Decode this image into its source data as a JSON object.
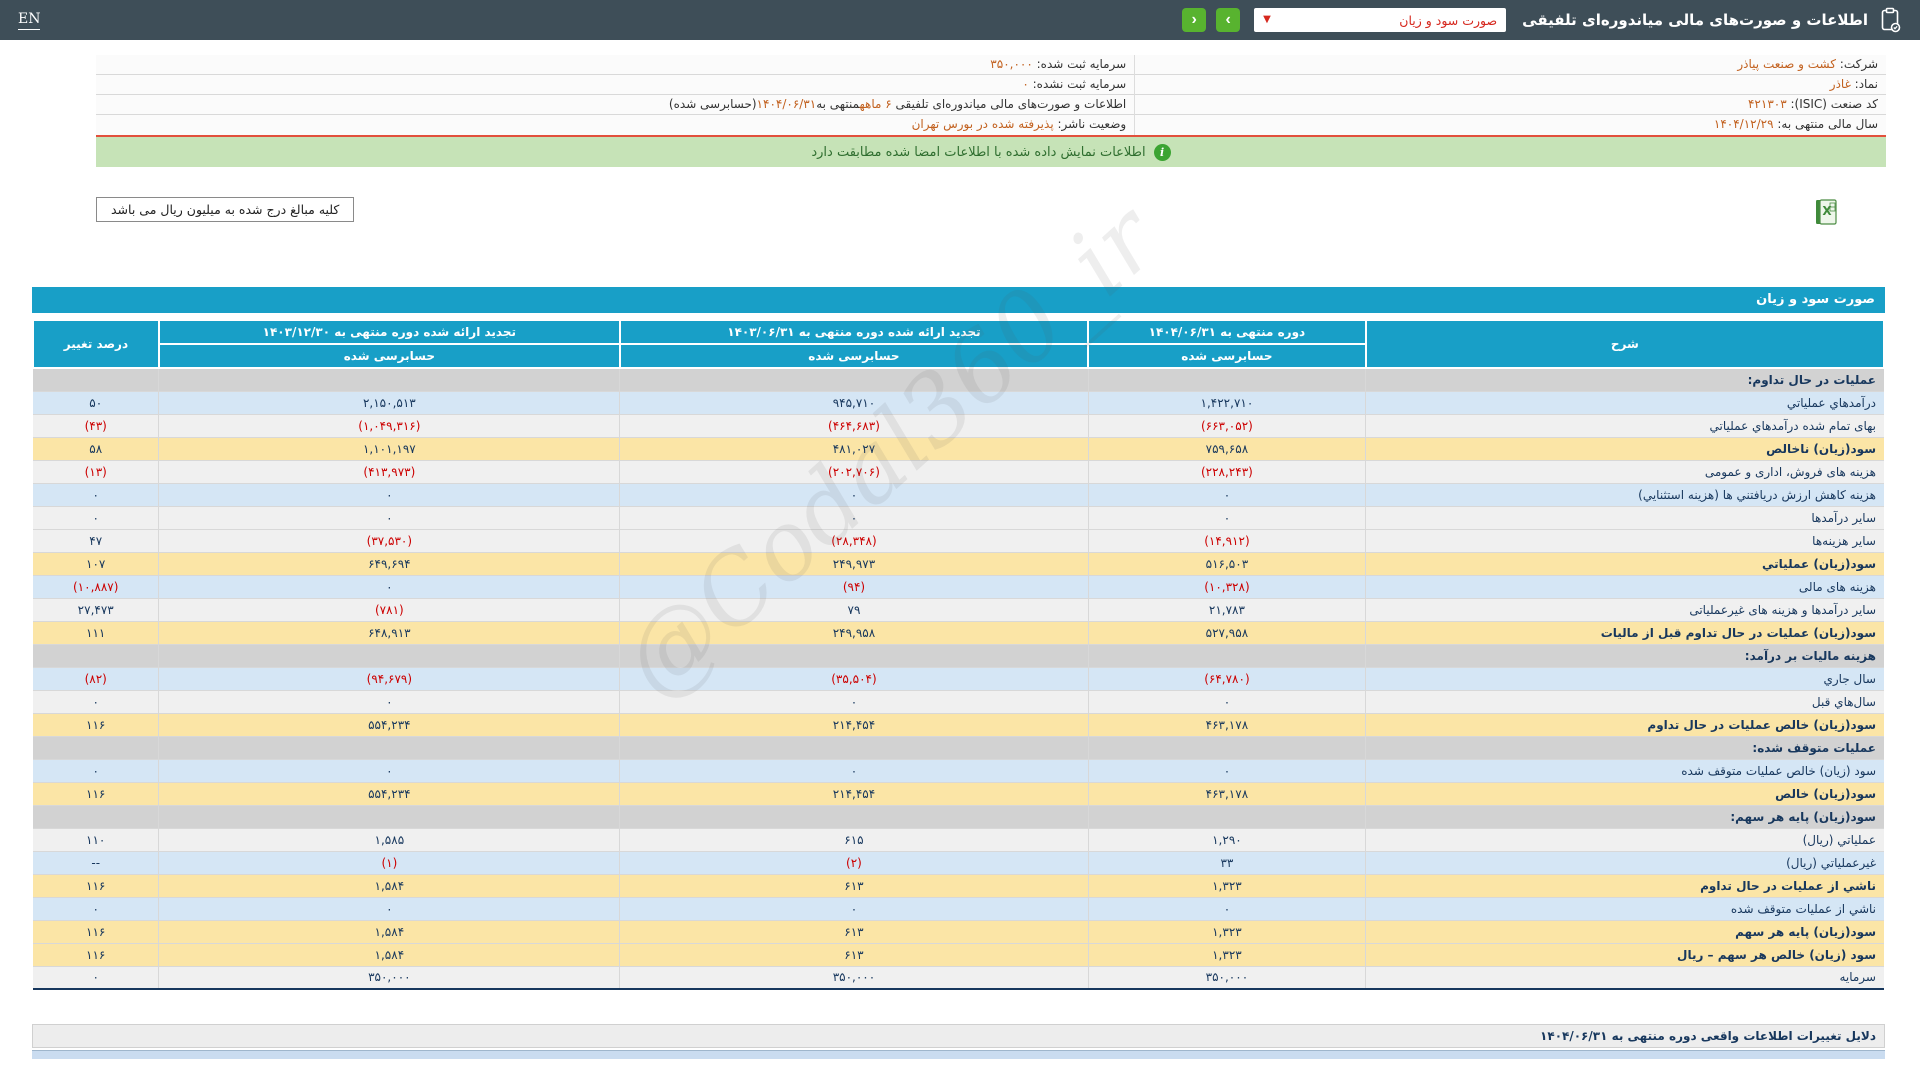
{
  "topbar": {
    "title": "اطلاعات و صورت‌های مالی میاندوره‌ای تلفیقی",
    "dropdown_value": "صورت سود و زیان",
    "next_label": "›",
    "prev_label": "‹",
    "lang": "EN"
  },
  "info": {
    "right": [
      [
        {
          "t": "شرکت:  "
        },
        {
          "t": "کشت و صنعت پیاذر",
          "o": true
        }
      ],
      [
        {
          "t": "نماد:  "
        },
        {
          "t": "غاذر",
          "o": true
        }
      ],
      [
        {
          "t": "کد صنعت (ISIC):  "
        },
        {
          "t": "۴۲۱۳۰۳",
          "o": true
        }
      ],
      [
        {
          "t": "سال مالی منتهی به:  "
        },
        {
          "t": "۱۴۰۴/۱۲/۲۹",
          "o": true
        }
      ]
    ],
    "left": [
      [
        {
          "t": "سرمایه ثبت شده:  "
        },
        {
          "t": "۳۵۰,۰۰۰",
          "o": true
        }
      ],
      [
        {
          "t": "سرمایه ثبت نشده:  "
        },
        {
          "t": "۰",
          "o": true
        }
      ],
      [
        {
          "t": "اطلاعات و صورت‌های مالی میاندوره‌ای تلفیقی "
        },
        {
          "t": "۶ ماهه",
          "o": true
        },
        {
          "t": "منتهی به"
        },
        {
          "t": "۱۴۰۴/۰۶/۳۱",
          "o": true
        },
        {
          "t": "(حسابرسی شده)"
        }
      ],
      [
        {
          "t": "وضعیت ناشر:  "
        },
        {
          "t": "پذیرفته شده در بورس تهران",
          "o": true
        }
      ]
    ]
  },
  "banner": {
    "text": "اطلاعات نمایش داده شده با اطلاعات امضا شده مطابقت دارد"
  },
  "amounts_note": "کلیه مبالغ درج شده به میلیون ریال می باشد",
  "watermark": "@Codal360_ir",
  "statement": {
    "title": "صورت سود و زیان",
    "col_desc": "شرح",
    "col_change": "درصد تغییر",
    "columns": [
      {
        "title": "دوره منتهی به ۱۴۰۴/۰۶/۳۱",
        "sub": "حسابرسی شده"
      },
      {
        "title": "تجدید ارائه شده دوره منتهی به ۱۴۰۳/۰۶/۳۱",
        "sub": "حسابرسی شده"
      },
      {
        "title": "تجدید ارائه شده دوره منتهی به ۱۴۰۳/۱۲/۳۰",
        "sub": "حسابرسی شده"
      }
    ],
    "rows": [
      {
        "type": "section",
        "desc": "عملیات در حال تداوم:"
      },
      {
        "type": "data",
        "variant": "blue",
        "desc": "درآمدهاي عملیاتي",
        "v": [
          "۱,۴۲۲,۷۱۰",
          "۹۴۵,۷۱۰",
          "۲,۱۵۰,۵۱۳",
          "۵۰"
        ]
      },
      {
        "type": "data",
        "variant": "white",
        "desc": "بهای تمام شده درآمدهاي عملیاتي",
        "v": [
          "(۶۶۳,۰۵۲)",
          "(۴۶۴,۶۸۳)",
          "(۱,۰۴۹,۳۱۶)",
          "(۴۳)"
        ]
      },
      {
        "type": "data",
        "variant": "yellow",
        "desc": "سود(زیان) ناخالص",
        "v": [
          "۷۵۹,۶۵۸",
          "۴۸۱,۰۲۷",
          "۱,۱۰۱,۱۹۷",
          "۵۸"
        ]
      },
      {
        "type": "data",
        "variant": "white",
        "desc": "هزینه های فروش، اداری و عمومی",
        "v": [
          "(۲۲۸,۲۴۳)",
          "(۲۰۲,۷۰۶)",
          "(۴۱۳,۹۷۳)",
          "(۱۳)"
        ]
      },
      {
        "type": "data",
        "variant": "blue",
        "desc": "هزینه کاهش ارزش دریافتني ها (هزینه استثنایي)",
        "v": [
          "۰",
          "۰",
          "۰",
          "۰"
        ]
      },
      {
        "type": "data",
        "variant": "white",
        "desc": "سایر درآمدها",
        "v": [
          "۰",
          "۰",
          "۰",
          "۰"
        ]
      },
      {
        "type": "data",
        "variant": "white",
        "desc": "سایر هزینه‌ها",
        "v": [
          "(۱۴,۹۱۲)",
          "(۲۸,۳۴۸)",
          "(۳۷,۵۳۰)",
          "۴۷"
        ]
      },
      {
        "type": "data",
        "variant": "yellow",
        "desc": "سود(زیان) عملیاتي",
        "v": [
          "۵۱۶,۵۰۳",
          "۲۴۹,۹۷۳",
          "۶۴۹,۶۹۴",
          "۱۰۷"
        ]
      },
      {
        "type": "data",
        "variant": "blue",
        "desc": "هزینه های مالی",
        "v": [
          "(۱۰,۳۲۸)",
          "(۹۴)",
          "۰",
          "(۱۰,۸۸۷)"
        ]
      },
      {
        "type": "data",
        "variant": "white",
        "desc": "سایر درآمدها و هزینه های غیرعملیاتی",
        "v": [
          "۲۱,۷۸۳",
          "۷۹",
          "(۷۸۱)",
          "۲۷,۴۷۳"
        ]
      },
      {
        "type": "data",
        "variant": "yellow",
        "desc": "سود(زیان) عملیات در حال تداوم قبل از مالیات",
        "v": [
          "۵۲۷,۹۵۸",
          "۲۴۹,۹۵۸",
          "۶۴۸,۹۱۳",
          "۱۱۱"
        ]
      },
      {
        "type": "section",
        "desc": "هزینه مالیات بر درآمد:"
      },
      {
        "type": "data",
        "variant": "blue",
        "desc": "سال جاري",
        "v": [
          "(۶۴,۷۸۰)",
          "(۳۵,۵۰۴)",
          "(۹۴,۶۷۹)",
          "(۸۲)"
        ]
      },
      {
        "type": "data",
        "variant": "white",
        "desc": "سال‌هاي قبل",
        "v": [
          "۰",
          "۰",
          "۰",
          "۰"
        ]
      },
      {
        "type": "data",
        "variant": "yellow",
        "desc": "سود(زیان) خالص عملیات در حال تداوم",
        "v": [
          "۴۶۳,۱۷۸",
          "۲۱۴,۴۵۴",
          "۵۵۴,۲۳۴",
          "۱۱۶"
        ]
      },
      {
        "type": "section",
        "desc": "عملیات متوقف شده:"
      },
      {
        "type": "data",
        "variant": "blue",
        "desc": "سود (زیان) خالص عملیات متوقف شده",
        "v": [
          "۰",
          "۰",
          "۰",
          "۰"
        ]
      },
      {
        "type": "data",
        "variant": "yellow",
        "desc": "سود(زیان) خالص",
        "v": [
          "۴۶۳,۱۷۸",
          "۲۱۴,۴۵۴",
          "۵۵۴,۲۳۴",
          "۱۱۶"
        ]
      },
      {
        "type": "section",
        "desc": "سود(زیان) پایه هر سهم:"
      },
      {
        "type": "data",
        "variant": "white",
        "desc": "عملیاتي (ریال)",
        "v": [
          "۱,۲۹۰",
          "۶۱۵",
          "۱,۵۸۵",
          "۱۱۰"
        ]
      },
      {
        "type": "data",
        "variant": "blue",
        "desc": "غیرعملیاتي (ریال)",
        "v": [
          "۳۳",
          "(۲)",
          "(۱)",
          "--"
        ]
      },
      {
        "type": "data",
        "variant": "yellow",
        "desc": "ناشي از عملیات در حال تداوم",
        "v": [
          "۱,۳۲۳",
          "۶۱۳",
          "۱,۵۸۴",
          "۱۱۶"
        ]
      },
      {
        "type": "data",
        "variant": "blue",
        "desc": "ناشي از عملیات متوقف شده",
        "v": [
          "۰",
          "۰",
          "۰",
          "۰"
        ]
      },
      {
        "type": "data",
        "variant": "yellow",
        "desc": "سود(زیان) پایه هر سهم",
        "v": [
          "۱,۳۲۳",
          "۶۱۳",
          "۱,۵۸۴",
          "۱۱۶"
        ]
      },
      {
        "type": "data",
        "variant": "yellow",
        "desc": "سود (زیان) خالص هر سهم – ریال",
        "v": [
          "۱,۳۲۳",
          "۶۱۳",
          "۱,۵۸۴",
          "۱۱۶"
        ]
      },
      {
        "type": "data",
        "variant": "white",
        "desc": "سرمایه",
        "v": [
          "۳۵۰,۰۰۰",
          "۳۵۰,۰۰۰",
          "۳۵۰,۰۰۰",
          "۰"
        ]
      }
    ]
  },
  "footer": {
    "reasons_label": "دلایل تغییرات اطلاعات واقعی دوره منتهی به ۱۴۰۴/۰۶/۳۱"
  },
  "colors": {
    "topbar": "#3e4e58",
    "accent_teal": "#189fc7",
    "button_green": "#58b32f",
    "banner_green": "#c6e3b7",
    "divider_red": "#e2503c",
    "value_orange": "#c2611f",
    "row_blue": "#d5e6f5",
    "row_yellow": "#fbe5a6",
    "negative_red": "#cc0000",
    "text_navy": "#17375d"
  }
}
